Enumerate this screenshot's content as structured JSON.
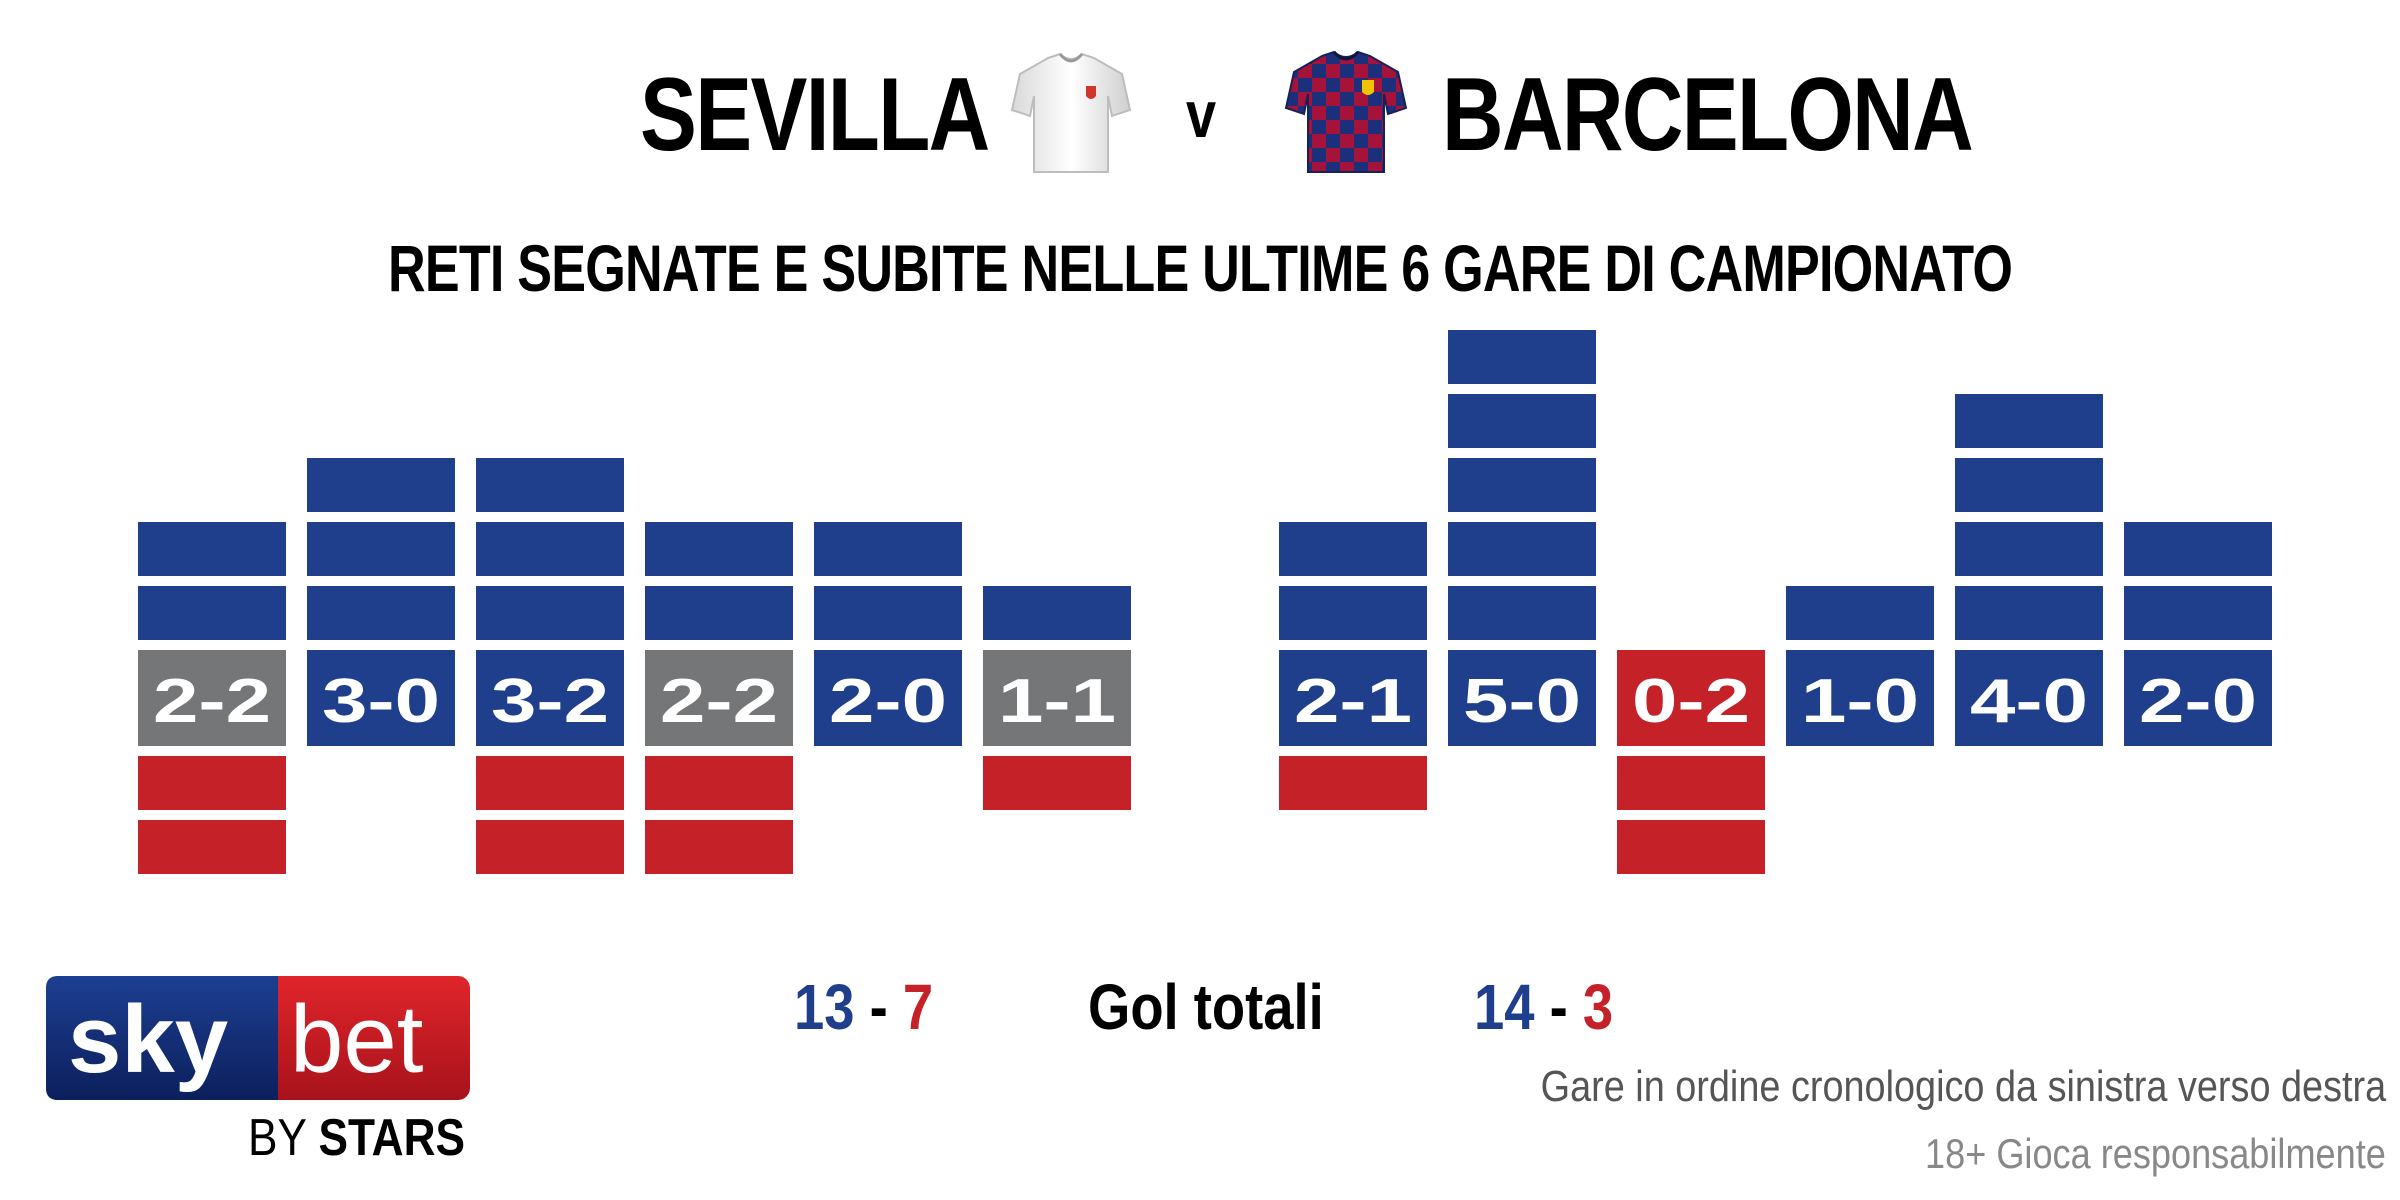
{
  "header": {
    "home_team": "SEVILLA",
    "versus": "v",
    "away_team": "BARCELONA",
    "subtitle": "RETI SEGNATE E SUBITE NELLE ULTIME 6 GARE DI CAMPIONATO"
  },
  "chart_data": {
    "type": "bar",
    "title": "RETI SEGNATE E SUBITE NELLE ULTIME 6 GARE DI CAMPIONATO",
    "colors": {
      "scored": "#1f3e8c",
      "conceded": "#c42128",
      "win": "#1f3e8c",
      "draw": "#747678",
      "loss": "#c42128"
    },
    "teams": [
      {
        "name": "SEVILLA",
        "matches": [
          {
            "score": "2-2",
            "scored": 2,
            "conceded": 2,
            "result": "draw"
          },
          {
            "score": "3-0",
            "scored": 3,
            "conceded": 0,
            "result": "win"
          },
          {
            "score": "3-2",
            "scored": 3,
            "conceded": 2,
            "result": "win"
          },
          {
            "score": "2-2",
            "scored": 2,
            "conceded": 2,
            "result": "draw"
          },
          {
            "score": "2-0",
            "scored": 2,
            "conceded": 0,
            "result": "win"
          },
          {
            "score": "1-1",
            "scored": 1,
            "conceded": 1,
            "result": "draw"
          }
        ]
      },
      {
        "name": "BARCELONA",
        "matches": [
          {
            "score": "2-1",
            "scored": 2,
            "conceded": 1,
            "result": "win"
          },
          {
            "score": "5-0",
            "scored": 5,
            "conceded": 0,
            "result": "win"
          },
          {
            "score": "0-2",
            "scored": 0,
            "conceded": 2,
            "result": "loss"
          },
          {
            "score": "1-0",
            "scored": 1,
            "conceded": 0,
            "result": "win"
          },
          {
            "score": "4-0",
            "scored": 4,
            "conceded": 0,
            "result": "win"
          },
          {
            "score": "2-0",
            "scored": 2,
            "conceded": 0,
            "result": "win"
          }
        ]
      }
    ]
  },
  "totals": {
    "label": "Gol totali",
    "home_scored": "13",
    "home_conceded": "7",
    "away_scored": "14",
    "away_conceded": "3",
    "separator": "-"
  },
  "footer": {
    "note": "Gare in ordine cronologico da sinistra verso destra",
    "disclaimer": "18+ Gioca responsabilmente",
    "logo_sky": "sky",
    "logo_bet": "bet",
    "logo_by": "BY",
    "logo_stars": "STARS"
  }
}
